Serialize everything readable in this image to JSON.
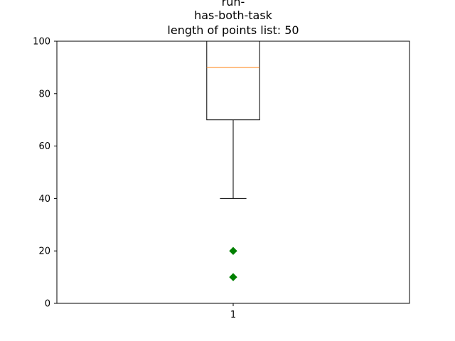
{
  "chart_data": {
    "type": "box",
    "title_lines": [
      "run-",
      "has-both-task",
      "length of points list: 50"
    ],
    "xlabel": "",
    "ylabel": "",
    "ylim": [
      0,
      100
    ],
    "y_ticks": [
      0,
      20,
      40,
      60,
      80,
      100
    ],
    "categories": [
      "1"
    ],
    "boxes": [
      {
        "category": "1",
        "whisker_low": 40,
        "q1": 70,
        "median": 90,
        "q3": 100,
        "whisker_high": 100,
        "outliers": [
          20,
          10
        ]
      }
    ],
    "grid": false,
    "colors": {
      "box": "#000000",
      "median": "#ff7f0e",
      "outlier": "#008000",
      "axes": "#000000"
    }
  }
}
